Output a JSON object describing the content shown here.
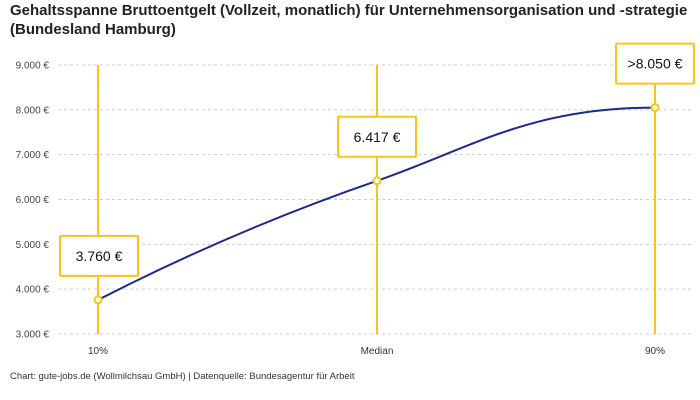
{
  "title": "Gehaltsspanne Bruttoentgelt (Vollzeit, monatlich) für Unternehmensorganisation und -strategie (Bundesland Hamburg)",
  "footer": "Chart: gute-jobs.de (Wollmilchsau GmbH) | Datenquelle: Bundesagentur für Arbeit",
  "colors": {
    "line": "#1b2a8c",
    "accent": "#f5c518",
    "grid": "#cccccc"
  },
  "chart_data": {
    "type": "line",
    "categories": [
      "10%",
      "Median",
      "90%"
    ],
    "values": [
      3760,
      6417,
      8050
    ],
    "labels": [
      "3.760 €",
      "6.417 €",
      ">8.050 €"
    ],
    "yticks": [
      3000,
      4000,
      5000,
      6000,
      7000,
      8000,
      9000
    ],
    "ytick_labels": [
      "3.000 €",
      "4.000 €",
      "5.000 €",
      "6.000 €",
      "7.000 €",
      "8.000 €",
      "9.000 €"
    ],
    "ylim": [
      3000,
      9000
    ],
    "grid": true
  }
}
